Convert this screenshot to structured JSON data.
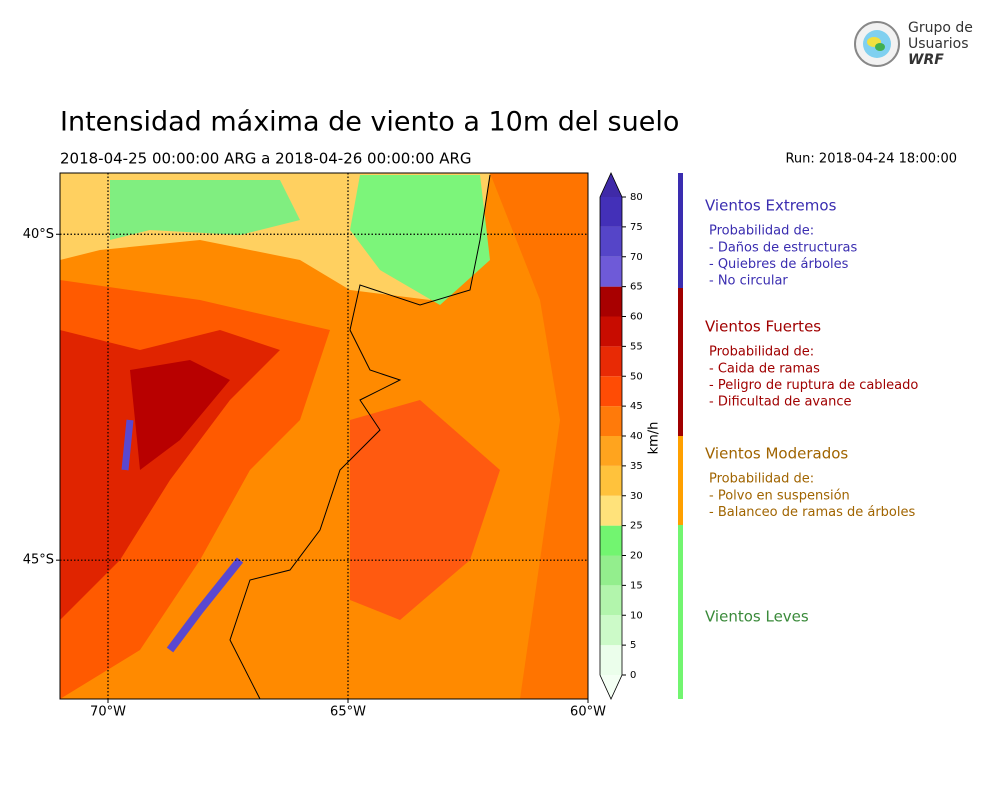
{
  "logo": {
    "line1": "Grupo de",
    "line2": "Usuarios",
    "line3": "WRF"
  },
  "title": "Intensidad máxima de viento a 10m del suelo",
  "subtitle": "2018-04-25 00:00:00 ARG  a  2018-04-26 00:00:00 ARG",
  "run": "Run: 2018-04-24 18:00:00",
  "map": {
    "xlim": [
      -71,
      -60
    ],
    "ylim": [
      -47.13,
      -39.06
    ],
    "xticks": [
      {
        "value": -70,
        "label": "70°W"
      },
      {
        "value": -65,
        "label": "65°W"
      },
      {
        "value": -60,
        "label": "60°W"
      }
    ],
    "yticks": [
      {
        "value": -40,
        "label": "40°S"
      },
      {
        "value": -45,
        "label": "45°S"
      }
    ]
  },
  "colorbar": {
    "label": "km/h",
    "ticks": [
      0,
      5,
      10,
      15,
      20,
      25,
      30,
      35,
      40,
      45,
      50,
      55,
      60,
      65,
      70,
      75,
      80
    ],
    "colors": [
      "#ebfeeb",
      "#ccfac8",
      "#b2f5ac",
      "#93ee8d",
      "#72f570",
      "#ffe27a",
      "#ffc23c",
      "#ffa41e",
      "#ff7a0a",
      "#ff4c05",
      "#e82a05",
      "#c80c00",
      "#a80000",
      "#6e5ad8",
      "#5545c8",
      "#4330b8"
    ],
    "under_color": "#f4fff4",
    "over_color": "#3f2aa8"
  },
  "legend": [
    {
      "title": "Vientos Extremos",
      "color": "#3a2db0",
      "text_color": "#3a2db0",
      "heading": "Probabilidad de:",
      "items": [
        "- Daños de estructuras",
        "- Quiebres de árboles",
        "- No circular"
      ]
    },
    {
      "title": "Vientos Fuertes",
      "color": "#a00000",
      "text_color": "#a00000",
      "heading": "Probabilidad de:",
      "items": [
        "- Caida de ramas",
        "- Peligro de ruptura de cableado",
        "- Dificultad de avance"
      ]
    },
    {
      "title": "Vientos Moderados",
      "color": "#ffa000",
      "text_color": "#a06400",
      "heading": "Probabilidad de:",
      "items": [
        "- Polvo en suspensión",
        "- Balanceo de ramas de árboles"
      ]
    },
    {
      "title": "Vientos Leves",
      "color": "#72f570",
      "text_color": "#3a8a3a",
      "items": []
    }
  ]
}
